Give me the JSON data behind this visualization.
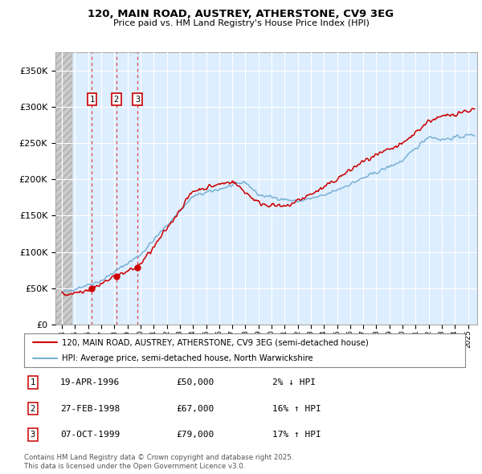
{
  "title_line1": "120, MAIN ROAD, AUSTREY, ATHERSTONE, CV9 3EG",
  "title_line2": "Price paid vs. HM Land Registry's House Price Index (HPI)",
  "ylim": [
    0,
    375000
  ],
  "yticks": [
    0,
    50000,
    100000,
    150000,
    200000,
    250000,
    300000,
    350000
  ],
  "ytick_labels": [
    "£0",
    "£50K",
    "£100K",
    "£150K",
    "£200K",
    "£250K",
    "£300K",
    "£350K"
  ],
  "xlim_start": 1993.5,
  "xlim_end": 2025.7,
  "legend_line1": "120, MAIN ROAD, AUSTREY, ATHERSTONE, CV9 3EG (semi-detached house)",
  "legend_line2": "HPI: Average price, semi-detached house, North Warwickshire",
  "sale_color": "#cc0000",
  "hpi_color": "#7ab0d4",
  "transaction_markers": [
    {
      "label": "1",
      "date_year": 1996.29,
      "price": 50000
    },
    {
      "label": "2",
      "date_year": 1998.15,
      "price": 67000
    },
    {
      "label": "3",
      "date_year": 1999.77,
      "price": 79000
    }
  ],
  "table_rows": [
    {
      "num": "1",
      "date": "19-APR-1996",
      "price": "£50,000",
      "pct": "2% ↓ HPI"
    },
    {
      "num": "2",
      "date": "27-FEB-1998",
      "price": "£67,000",
      "pct": "16% ↑ HPI"
    },
    {
      "num": "3",
      "date": "07-OCT-1999",
      "price": "£79,000",
      "pct": "17% ↑ HPI"
    }
  ],
  "footnote": "Contains HM Land Registry data © Crown copyright and database right 2025.\nThis data is licensed under the Open Government Licence v3.0.",
  "bg_color": "#ffffff",
  "plot_bg_color": "#ddeeff",
  "grid_color": "#ffffff",
  "hatch_color": "#cccccc"
}
